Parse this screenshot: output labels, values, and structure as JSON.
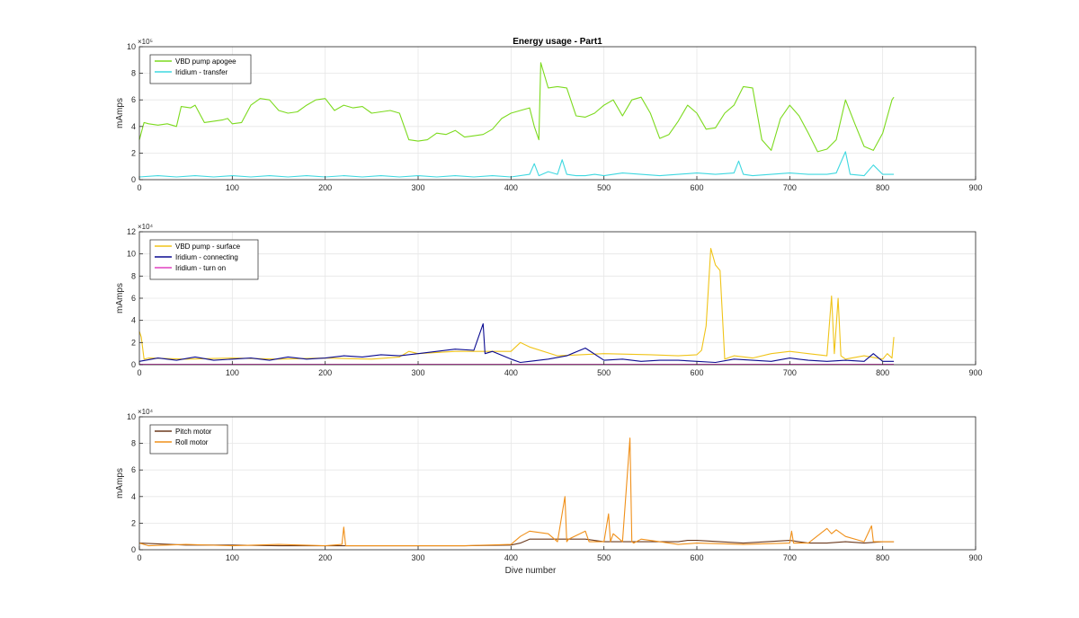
{
  "figure_title": "Energy usage - Part1",
  "chart_data": [
    {
      "type": "line",
      "title": "Energy usage - Part1",
      "xlabel": "",
      "ylabel": "mAmps",
      "xlim": [
        0,
        900
      ],
      "ylim": [
        0,
        1000000
      ],
      "xticks": [
        "0",
        "100",
        "200",
        "300",
        "400",
        "500",
        "600",
        "700",
        "800",
        "900"
      ],
      "yticks": [
        "0",
        "2",
        "4",
        "6",
        "8",
        "10"
      ],
      "exponent_label": "×10⁵",
      "y_scale": 100000,
      "grid": true,
      "legend_position": "top-left",
      "series": [
        {
          "name": "VBD pump apogee",
          "color": "#7cda1e",
          "x": [
            0,
            5,
            10,
            20,
            30,
            40,
            45,
            55,
            60,
            70,
            80,
            90,
            95,
            100,
            110,
            120,
            130,
            140,
            150,
            160,
            170,
            180,
            190,
            200,
            210,
            220,
            230,
            240,
            250,
            260,
            270,
            280,
            290,
            300,
            310,
            320,
            330,
            340,
            350,
            360,
            370,
            380,
            390,
            400,
            410,
            420,
            425,
            430,
            432,
            440,
            450,
            460,
            470,
            480,
            490,
            500,
            510,
            520,
            530,
            540,
            550,
            560,
            570,
            580,
            590,
            600,
            610,
            620,
            630,
            640,
            650,
            660,
            670,
            680,
            690,
            700,
            710,
            720,
            730,
            740,
            750,
            760,
            770,
            780,
            790,
            800,
            810,
            812
          ],
          "y": [
            300000,
            430000,
            420000,
            410000,
            420000,
            400000,
            550000,
            540000,
            560000,
            430000,
            440000,
            450000,
            460000,
            420000,
            430000,
            560000,
            610000,
            600000,
            520000,
            500000,
            510000,
            560000,
            600000,
            610000,
            520000,
            560000,
            540000,
            550000,
            500000,
            510000,
            520000,
            500000,
            300000,
            290000,
            300000,
            350000,
            340000,
            370000,
            320000,
            330000,
            340000,
            380000,
            460000,
            500000,
            520000,
            540000,
            400000,
            300000,
            880000,
            690000,
            700000,
            690000,
            480000,
            470000,
            500000,
            560000,
            600000,
            480000,
            600000,
            620000,
            500000,
            310000,
            340000,
            440000,
            560000,
            500000,
            380000,
            390000,
            500000,
            560000,
            700000,
            690000,
            300000,
            220000,
            460000,
            560000,
            480000,
            350000,
            210000,
            230000,
            300000,
            600000,
            420000,
            250000,
            220000,
            350000,
            600000,
            620000
          ]
        },
        {
          "name": "Iridium - transfer",
          "color": "#3fd8e0",
          "x": [
            0,
            20,
            40,
            60,
            80,
            100,
            120,
            140,
            160,
            180,
            200,
            220,
            240,
            260,
            280,
            300,
            320,
            340,
            360,
            380,
            400,
            420,
            425,
            430,
            440,
            450,
            455,
            460,
            470,
            480,
            490,
            500,
            520,
            540,
            560,
            580,
            600,
            620,
            640,
            645,
            650,
            660,
            680,
            700,
            720,
            740,
            750,
            760,
            765,
            780,
            790,
            800,
            812
          ],
          "y": [
            20000,
            30000,
            20000,
            30000,
            20000,
            30000,
            20000,
            30000,
            20000,
            30000,
            20000,
            30000,
            20000,
            30000,
            20000,
            30000,
            20000,
            30000,
            20000,
            30000,
            20000,
            40000,
            120000,
            30000,
            60000,
            40000,
            150000,
            40000,
            30000,
            30000,
            40000,
            30000,
            50000,
            40000,
            30000,
            40000,
            50000,
            40000,
            50000,
            140000,
            40000,
            30000,
            40000,
            50000,
            40000,
            40000,
            50000,
            210000,
            40000,
            30000,
            110000,
            40000,
            40000
          ]
        }
      ]
    },
    {
      "type": "line",
      "title": "",
      "xlabel": "",
      "ylabel": "mAmps",
      "xlim": [
        0,
        900
      ],
      "ylim": [
        0,
        120000
      ],
      "xticks": [
        "0",
        "100",
        "200",
        "300",
        "400",
        "500",
        "600",
        "700",
        "800",
        "900"
      ],
      "yticks": [
        "0",
        "2",
        "4",
        "6",
        "8",
        "10",
        "12"
      ],
      "exponent_label": "×10⁴",
      "y_scale": 10000,
      "grid": true,
      "legend_position": "top-left",
      "series": [
        {
          "name": "VBD pump - surface",
          "color": "#f0c419",
          "x": [
            0,
            2,
            5,
            10,
            50,
            100,
            150,
            200,
            250,
            280,
            290,
            300,
            340,
            380,
            400,
            410,
            420,
            450,
            500,
            550,
            580,
            600,
            605,
            610,
            615,
            620,
            625,
            630,
            640,
            660,
            680,
            700,
            720,
            740,
            745,
            748,
            752,
            755,
            760,
            780,
            800,
            805,
            810,
            812
          ],
          "y": [
            30000,
            25000,
            5000,
            6000,
            5000,
            6000,
            5000,
            6000,
            5000,
            7000,
            12000,
            10000,
            12000,
            12000,
            12000,
            20000,
            16000,
            8000,
            10000,
            9000,
            8000,
            9000,
            13000,
            35000,
            105000,
            90000,
            85000,
            5000,
            8000,
            6000,
            10000,
            12000,
            10000,
            8000,
            62000,
            10000,
            60000,
            8000,
            5000,
            8000,
            5000,
            10000,
            6000,
            25000
          ]
        },
        {
          "name": "Iridium - connecting",
          "color": "#0a0a90",
          "x": [
            0,
            20,
            40,
            60,
            80,
            100,
            120,
            140,
            160,
            180,
            200,
            220,
            240,
            260,
            280,
            300,
            320,
            340,
            360,
            370,
            372,
            380,
            400,
            410,
            420,
            440,
            460,
            480,
            500,
            520,
            540,
            560,
            580,
            600,
            620,
            640,
            660,
            680,
            700,
            720,
            740,
            760,
            780,
            790,
            800,
            812
          ],
          "y": [
            3000,
            6000,
            4000,
            7000,
            4000,
            5000,
            6000,
            4000,
            7000,
            5000,
            6000,
            8000,
            7000,
            9000,
            8000,
            10000,
            12000,
            14000,
            13000,
            37000,
            10000,
            12000,
            5000,
            2000,
            3000,
            5000,
            8000,
            15000,
            4000,
            5000,
            3000,
            4000,
            4000,
            3000,
            2000,
            5000,
            4000,
            3000,
            6000,
            4000,
            3000,
            4000,
            3000,
            10000,
            3000,
            3000
          ]
        },
        {
          "name": "Iridium - turn on",
          "color": "#e040c0",
          "x": [
            0,
            100,
            200,
            300,
            400,
            500,
            600,
            700,
            812
          ],
          "y": [
            400,
            400,
            400,
            400,
            400,
            400,
            400,
            400,
            400
          ]
        }
      ]
    },
    {
      "type": "line",
      "title": "",
      "xlabel": "Dive number",
      "ylabel": "mAmps",
      "xlim": [
        0,
        900
      ],
      "ylim": [
        0,
        100000
      ],
      "xticks": [
        "0",
        "100",
        "200",
        "300",
        "400",
        "500",
        "600",
        "700",
        "800",
        "900"
      ],
      "yticks": [
        "0",
        "2",
        "4",
        "6",
        "8",
        "10"
      ],
      "exponent_label": "×10⁴",
      "y_scale": 10000,
      "grid": true,
      "legend_position": "top-left",
      "series": [
        {
          "name": "Pitch motor",
          "color": "#6b3a1e",
          "x": [
            0,
            50,
            100,
            150,
            200,
            250,
            300,
            350,
            400,
            410,
            420,
            450,
            480,
            500,
            550,
            580,
            590,
            600,
            650,
            700,
            720,
            740,
            760,
            780,
            800,
            812
          ],
          "y": [
            5000,
            3500,
            3500,
            3000,
            3000,
            3000,
            3000,
            3000,
            3500,
            5000,
            8000,
            8000,
            8000,
            6000,
            6000,
            6000,
            7000,
            7000,
            5000,
            7000,
            5000,
            5000,
            6000,
            5000,
            6000,
            6000
          ]
        },
        {
          "name": "Roll motor",
          "color": "#f0901a",
          "x": [
            0,
            10,
            50,
            100,
            150,
            200,
            218,
            220,
            222,
            250,
            300,
            350,
            400,
            410,
            420,
            440,
            450,
            458,
            460,
            462,
            480,
            484,
            500,
            505,
            507,
            510,
            520,
            528,
            530,
            532,
            540,
            560,
            580,
            600,
            650,
            700,
            702,
            704,
            720,
            740,
            745,
            750,
            760,
            780,
            788,
            790,
            800,
            812
          ],
          "y": [
            5000,
            3000,
            4000,
            3000,
            4000,
            3000,
            4000,
            17000,
            3000,
            3000,
            3000,
            3000,
            4000,
            10000,
            14000,
            12000,
            6000,
            40000,
            6000,
            8000,
            14000,
            6000,
            6000,
            27000,
            6000,
            12000,
            6000,
            84000,
            6000,
            5000,
            8000,
            6000,
            4000,
            5000,
            4000,
            5000,
            14000,
            5000,
            5000,
            16000,
            12000,
            15000,
            10000,
            6000,
            18000,
            6000,
            6000,
            6000
          ]
        }
      ]
    }
  ]
}
